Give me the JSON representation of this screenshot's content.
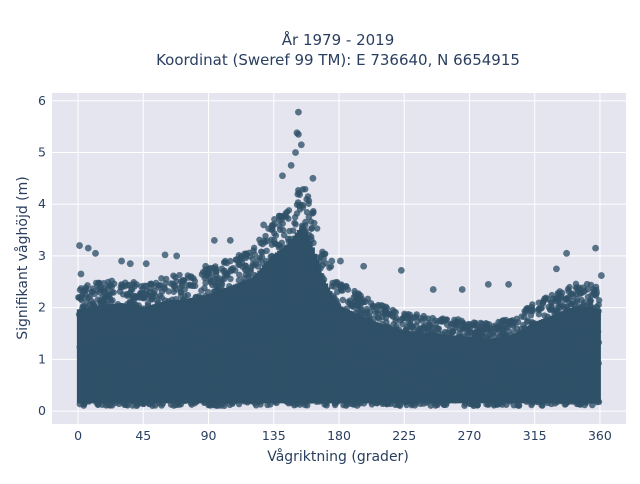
{
  "chart_data": {
    "type": "scatter",
    "title_lines": [
      "År 1979 - 2019",
      "Koordinat (Sweref 99 TM): E 736640, N 6654915"
    ],
    "xlabel": "Vågriktning (grader)",
    "ylabel": "Signifikant våghöjd (m)",
    "xlim": [
      -18,
      378
    ],
    "ylim": [
      -0.25,
      6.15
    ],
    "xticks": [
      0,
      45,
      90,
      135,
      180,
      225,
      270,
      315,
      360
    ],
    "yticks": [
      0,
      1,
      2,
      3,
      4,
      5,
      6
    ],
    "grid": true,
    "legend": "none",
    "marker_color": "#2f5168",
    "background_color": "#e5e5f0",
    "envelope": {
      "x": [
        0,
        15,
        30,
        45,
        60,
        75,
        90,
        105,
        120,
        135,
        145,
        150,
        155,
        160,
        170,
        180,
        195,
        210,
        225,
        240,
        255,
        270,
        285,
        300,
        315,
        330,
        345,
        360
      ],
      "top": [
        2.4,
        2.5,
        2.55,
        2.45,
        2.6,
        2.65,
        2.75,
        2.95,
        3.15,
        3.7,
        3.95,
        4.2,
        4.4,
        4.1,
        3.1,
        2.5,
        2.25,
        2.05,
        1.9,
        1.85,
        1.8,
        1.75,
        1.7,
        1.8,
        2.1,
        2.3,
        2.5,
        2.4
      ]
    },
    "outliers": [
      {
        "x": 152,
        "y": 5.78
      },
      {
        "x": 151,
        "y": 5.38
      },
      {
        "x": 152,
        "y": 5.35
      },
      {
        "x": 154,
        "y": 5.15
      },
      {
        "x": 150,
        "y": 5.0
      },
      {
        "x": 147,
        "y": 4.75
      },
      {
        "x": 162,
        "y": 4.5
      },
      {
        "x": 141,
        "y": 4.55
      },
      {
        "x": 1,
        "y": 3.2
      },
      {
        "x": 7,
        "y": 3.15
      },
      {
        "x": 2,
        "y": 2.65
      },
      {
        "x": 12,
        "y": 3.05
      },
      {
        "x": 36,
        "y": 2.85
      },
      {
        "x": 47,
        "y": 2.85
      },
      {
        "x": 60,
        "y": 3.02
      },
      {
        "x": 68,
        "y": 3.0
      },
      {
        "x": 94,
        "y": 3.3
      },
      {
        "x": 105,
        "y": 3.3
      },
      {
        "x": 181,
        "y": 2.9
      },
      {
        "x": 197,
        "y": 2.8
      },
      {
        "x": 223,
        "y": 2.72
      },
      {
        "x": 245,
        "y": 2.35
      },
      {
        "x": 265,
        "y": 2.35
      },
      {
        "x": 283,
        "y": 2.45
      },
      {
        "x": 297,
        "y": 2.45
      },
      {
        "x": 330,
        "y": 2.75
      },
      {
        "x": 337,
        "y": 3.05
      },
      {
        "x": 357,
        "y": 3.15
      },
      {
        "x": 361,
        "y": 2.62
      },
      {
        "x": 30,
        "y": 2.9
      },
      {
        "x": 88,
        "y": 2.8
      },
      {
        "x": 128,
        "y": 3.6
      },
      {
        "x": 175,
        "y": 2.9
      }
    ]
  }
}
